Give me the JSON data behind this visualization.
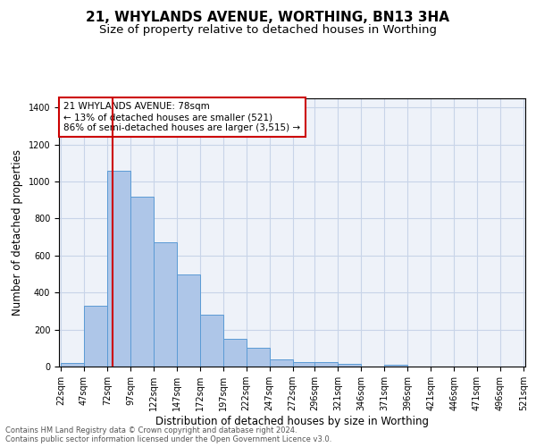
{
  "title": "21, WHYLANDS AVENUE, WORTHING, BN13 3HA",
  "subtitle": "Size of property relative to detached houses in Worthing",
  "xlabel": "Distribution of detached houses by size in Worthing",
  "ylabel": "Number of detached properties",
  "footnote1": "Contains HM Land Registry data © Crown copyright and database right 2024.",
  "footnote2": "Contains public sector information licensed under the Open Government Licence v3.0.",
  "bin_edges": [
    22,
    47,
    72,
    97,
    122,
    147,
    172,
    197,
    222,
    247,
    272,
    296,
    321,
    346,
    371,
    396,
    421,
    446,
    471,
    496,
    521
  ],
  "bar_heights": [
    20,
    330,
    1060,
    920,
    670,
    500,
    280,
    150,
    100,
    40,
    25,
    25,
    15,
    0,
    10,
    0,
    0,
    0,
    0,
    0
  ],
  "bar_color": "#aec6e8",
  "bar_edge_color": "#5b9bd5",
  "grid_color": "#c8d4e8",
  "background_color": "#eef2f9",
  "vline_x": 78,
  "vline_color": "#cc0000",
  "annotation_line1": "21 WHYLANDS AVENUE: 78sqm",
  "annotation_line2": "← 13% of detached houses are smaller (521)",
  "annotation_line3": "86% of semi-detached houses are larger (3,515) →",
  "annotation_box_color": "#ffffff",
  "annotation_box_edge": "#cc0000",
  "ylim": [
    0,
    1450
  ],
  "yticks": [
    0,
    200,
    400,
    600,
    800,
    1000,
    1200,
    1400
  ],
  "title_fontsize": 11,
  "subtitle_fontsize": 9.5,
  "ylabel_fontsize": 8.5,
  "xlabel_fontsize": 8.5,
  "tick_fontsize": 7,
  "annotation_fontsize": 7.5,
  "footnote_fontsize": 6
}
